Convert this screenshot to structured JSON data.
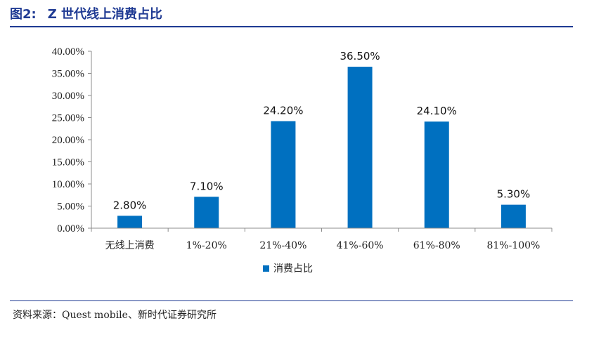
{
  "header": {
    "figure_number": "图2:",
    "title": "Z 世代线上消费占比"
  },
  "footer": {
    "source": "资料来源：Quest mobile、新时代证券研究所"
  },
  "chart_data": {
    "type": "bar",
    "categories": [
      "无线上消费",
      "1%-20%",
      "21%-40%",
      "41%-60%",
      "61%-80%",
      "81%-100%"
    ],
    "series": [
      {
        "name": "消费占比",
        "values": [
          2.8,
          7.1,
          24.2,
          36.5,
          24.1,
          5.3
        ],
        "color": "#0070c0"
      }
    ],
    "data_labels": [
      "2.80%",
      "7.10%",
      "24.20%",
      "36.50%",
      "24.10%",
      "5.30%"
    ],
    "y_ticks": [
      "0.00%",
      "5.00%",
      "10.00%",
      "15.00%",
      "20.00%",
      "25.00%",
      "30.00%",
      "35.00%",
      "40.00%"
    ],
    "ylim": [
      0,
      40
    ],
    "grid": false,
    "legend_position": "bottom"
  }
}
